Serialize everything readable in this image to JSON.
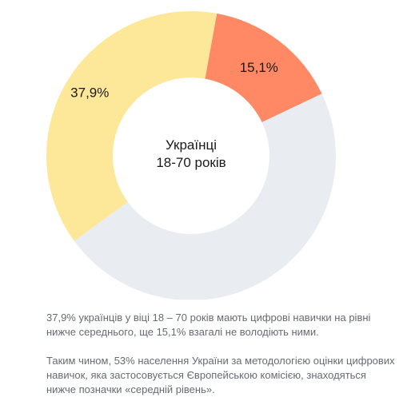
{
  "chart_data": {
    "type": "pie",
    "donut": true,
    "center_label": [
      "Українці",
      "18-70 років"
    ],
    "slices": [
      {
        "value": 37.9,
        "label": "37,9%",
        "color": "#fde89a"
      },
      {
        "value": 15.1,
        "label": "15,1%",
        "color": "#ff8964"
      },
      {
        "value": 47.0,
        "label": "",
        "color": "#e9ecf0"
      }
    ]
  },
  "captions": [
    "37,9% українців у віці 18 – 70 років мають цифрові навички на рівні нижче середнього, ще 15,1% взагалі не володіють ними.",
    "Таким чином, 53% населення України за методологією оцінки цифрових навичок, яка застосовується Європейською комісією, знаходяться нижче позначки «середній рівень»."
  ]
}
